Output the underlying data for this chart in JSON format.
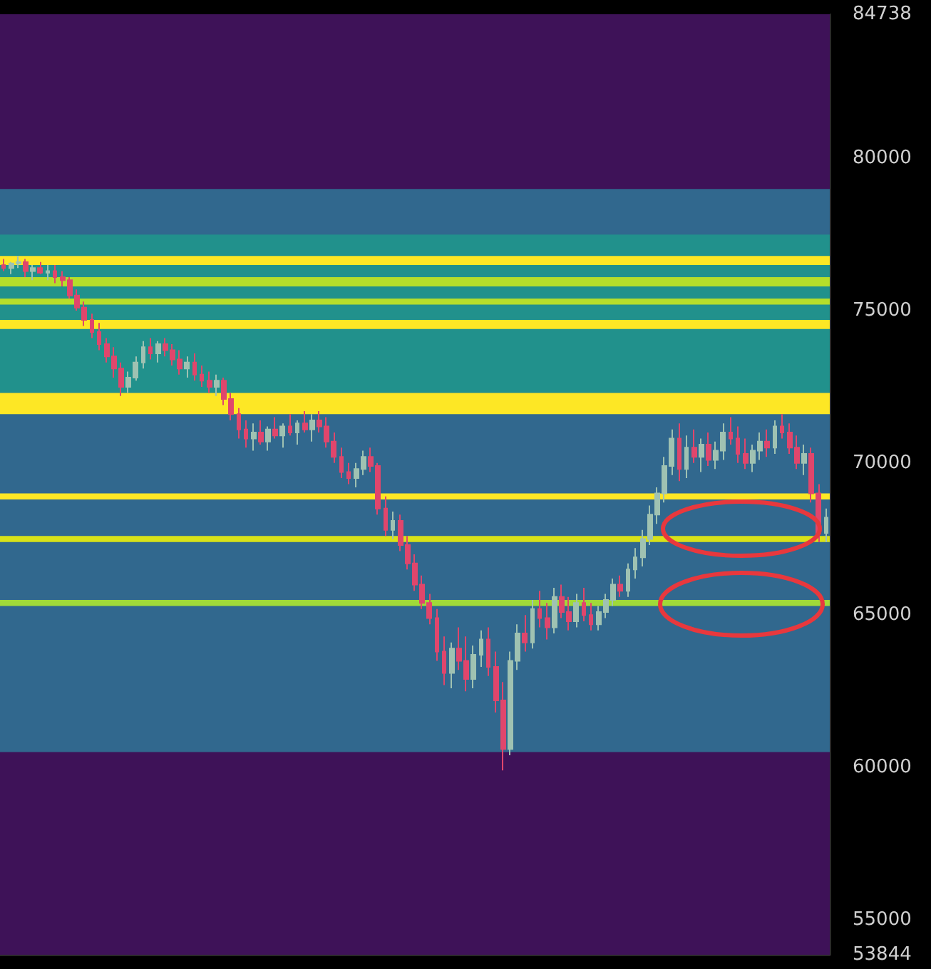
{
  "chart_data": {
    "type": "candlestick",
    "categories": [
      null,
      null,
      null,
      null,
      null,
      null,
      null,
      null,
      null,
      null,
      null,
      null,
      null,
      null,
      null,
      null,
      null,
      null,
      null,
      null,
      null,
      null,
      null,
      null,
      null,
      null,
      null,
      null,
      null,
      null,
      null,
      null,
      null,
      null,
      null,
      null,
      null,
      null,
      null,
      null,
      null,
      null,
      null,
      null,
      null,
      null,
      null,
      null,
      null,
      null,
      null,
      null,
      null,
      null,
      null,
      null,
      null,
      null,
      null,
      null,
      null,
      null,
      null,
      null,
      null,
      null,
      null,
      null,
      null,
      null,
      null,
      null,
      null,
      null,
      null,
      null,
      null,
      null,
      null,
      null,
      null,
      null,
      null,
      null,
      null,
      null,
      null,
      null,
      null,
      null,
      null,
      null,
      null,
      null,
      null,
      null,
      null,
      null,
      null,
      null,
      null,
      null,
      null,
      null,
      null,
      null,
      null,
      null,
      null,
      null,
      null,
      null,
      null
    ],
    "ohlc": [
      [
        76500,
        76700,
        76300,
        76400
      ],
      [
        76400,
        76600,
        76200,
        76550
      ],
      [
        76550,
        76800,
        76400,
        76600
      ],
      [
        76600,
        76700,
        76100,
        76300
      ],
      [
        76300,
        76500,
        76000,
        76400
      ],
      [
        76400,
        76600,
        76200,
        76250
      ],
      [
        76250,
        76500,
        76000,
        76300
      ],
      [
        76300,
        76500,
        75900,
        76100
      ],
      [
        76100,
        76300,
        75800,
        76000
      ],
      [
        76000,
        76100,
        75400,
        75500
      ],
      [
        75500,
        75700,
        75000,
        75100
      ],
      [
        75100,
        75300,
        74500,
        74700
      ],
      [
        74700,
        74900,
        74100,
        74300
      ],
      [
        74300,
        74600,
        73700,
        73900
      ],
      [
        73900,
        74100,
        73300,
        73500
      ],
      [
        73500,
        73800,
        72800,
        73100
      ],
      [
        73100,
        73300,
        72200,
        72500
      ],
      [
        72500,
        73000,
        72300,
        72800
      ],
      [
        72800,
        73500,
        72700,
        73300
      ],
      [
        73300,
        74000,
        73100,
        73800
      ],
      [
        73800,
        74100,
        73400,
        73600
      ],
      [
        73600,
        74000,
        73300,
        73900
      ],
      [
        73900,
        74100,
        73500,
        73700
      ],
      [
        73700,
        73900,
        73200,
        73400
      ],
      [
        73400,
        73700,
        72900,
        73100
      ],
      [
        73100,
        73500,
        72800,
        73300
      ],
      [
        73300,
        73600,
        72700,
        72900
      ],
      [
        72900,
        73200,
        72500,
        72700
      ],
      [
        72700,
        73000,
        72300,
        72500
      ],
      [
        72500,
        72900,
        72200,
        72700
      ],
      [
        72700,
        72800,
        71900,
        72100
      ],
      [
        72100,
        72300,
        71400,
        71600
      ],
      [
        71600,
        71800,
        70800,
        71100
      ],
      [
        71100,
        71400,
        70500,
        70800
      ],
      [
        70800,
        71300,
        70400,
        71000
      ],
      [
        71000,
        71400,
        70600,
        70700
      ],
      [
        70700,
        71200,
        70400,
        71100
      ],
      [
        71100,
        71500,
        70800,
        70900
      ],
      [
        70900,
        71300,
        70500,
        71200
      ],
      [
        71200,
        71600,
        70900,
        71000
      ],
      [
        71000,
        71400,
        70600,
        71300
      ],
      [
        71300,
        71700,
        71000,
        71100
      ],
      [
        71100,
        71600,
        70700,
        71400
      ],
      [
        71400,
        71700,
        71000,
        71200
      ],
      [
        71200,
        71500,
        70500,
        70700
      ],
      [
        70700,
        71000,
        70000,
        70200
      ],
      [
        70200,
        70500,
        69500,
        69700
      ],
      [
        69700,
        70000,
        69300,
        69500
      ],
      [
        69500,
        70000,
        69200,
        69800
      ],
      [
        69800,
        70400,
        69600,
        70200
      ],
      [
        70200,
        70500,
        69700,
        69900
      ],
      [
        69900,
        70000,
        68300,
        68500
      ],
      [
        68500,
        68900,
        67600,
        67800
      ],
      [
        67800,
        68400,
        67500,
        68100
      ],
      [
        68100,
        68300,
        67100,
        67300
      ],
      [
        67300,
        67600,
        66500,
        66700
      ],
      [
        66700,
        67000,
        65800,
        66000
      ],
      [
        66000,
        66300,
        65200,
        65400
      ],
      [
        65400,
        65700,
        64700,
        64900
      ],
      [
        64900,
        65200,
        63500,
        63800
      ],
      [
        63800,
        64300,
        62700,
        63100
      ],
      [
        63100,
        64100,
        62600,
        63900
      ],
      [
        63900,
        64600,
        63200,
        63500
      ],
      [
        63500,
        64300,
        62500,
        62900
      ],
      [
        62900,
        64000,
        62600,
        63700
      ],
      [
        63700,
        64500,
        63300,
        64200
      ],
      [
        64200,
        64600,
        63000,
        63300
      ],
      [
        63300,
        63800,
        61800,
        62200
      ],
      [
        62200,
        62800,
        59900,
        60600
      ],
      [
        60600,
        63800,
        60400,
        63500
      ],
      [
        63500,
        64700,
        63200,
        64400
      ],
      [
        64400,
        65000,
        63800,
        64100
      ],
      [
        64100,
        65500,
        63900,
        65200
      ],
      [
        65200,
        65800,
        64600,
        64900
      ],
      [
        64900,
        65400,
        64200,
        64600
      ],
      [
        64600,
        65900,
        64400,
        65600
      ],
      [
        65600,
        66000,
        64900,
        65100
      ],
      [
        65100,
        65600,
        64500,
        64800
      ],
      [
        64800,
        65700,
        64600,
        65400
      ],
      [
        65400,
        65900,
        64800,
        65000
      ],
      [
        65000,
        65400,
        64500,
        64700
      ],
      [
        64700,
        65300,
        64500,
        65100
      ],
      [
        65100,
        65700,
        64900,
        65500
      ],
      [
        65500,
        66200,
        65300,
        66000
      ],
      [
        66000,
        66300,
        65600,
        65800
      ],
      [
        65800,
        66700,
        65600,
        66500
      ],
      [
        66500,
        67200,
        66200,
        66900
      ],
      [
        66900,
        67800,
        66600,
        67500
      ],
      [
        67500,
        68600,
        67300,
        68300
      ],
      [
        68300,
        69200,
        68000,
        69000
      ],
      [
        69000,
        70200,
        68700,
        69900
      ],
      [
        69900,
        71100,
        69600,
        70800
      ],
      [
        70800,
        71300,
        69400,
        69800
      ],
      [
        69800,
        70900,
        69500,
        70500
      ],
      [
        70500,
        71100,
        70000,
        70200
      ],
      [
        70200,
        70800,
        69700,
        70600
      ],
      [
        70600,
        71000,
        69900,
        70100
      ],
      [
        70100,
        70700,
        69800,
        70400
      ],
      [
        70400,
        71300,
        70100,
        71000
      ],
      [
        71000,
        71500,
        70600,
        70800
      ],
      [
        70800,
        71200,
        70000,
        70300
      ],
      [
        70300,
        70800,
        69800,
        70000
      ],
      [
        70000,
        70600,
        69700,
        70400
      ],
      [
        70400,
        71000,
        70100,
        70700
      ],
      [
        70700,
        71100,
        70200,
        70500
      ],
      [
        70500,
        71400,
        70300,
        71200
      ],
      [
        71200,
        71600,
        70800,
        71000
      ],
      [
        71000,
        71300,
        70300,
        70500
      ],
      [
        70500,
        70900,
        69800,
        70000
      ],
      [
        70000,
        70600,
        69600,
        70300
      ],
      [
        70300,
        70500,
        68700,
        69000
      ],
      [
        69000,
        69300,
        67400,
        67700
      ],
      [
        67700,
        68500,
        67400,
        68200
      ]
    ],
    "colors": [
      "#e0466c",
      "#9fc2b2",
      "#9fc2b2",
      "#e0466c",
      "#9fc2b2",
      "#e0466c",
      "#9fc2b2",
      "#e0466c",
      "#e0466c",
      "#e0466c",
      "#e0466c",
      "#e0466c",
      "#e0466c",
      "#e0466c",
      "#e0466c",
      "#e0466c",
      "#e0466c",
      "#9fc2b2",
      "#9fc2b2",
      "#9fc2b2",
      "#e0466c",
      "#9fc2b2",
      "#e0466c",
      "#e0466c",
      "#e0466c",
      "#9fc2b2",
      "#e0466c",
      "#e0466c",
      "#e0466c",
      "#9fc2b2",
      "#e0466c",
      "#e0466c",
      "#e0466c",
      "#e0466c",
      "#9fc2b2",
      "#e0466c",
      "#9fc2b2",
      "#e0466c",
      "#9fc2b2",
      "#e0466c",
      "#9fc2b2",
      "#e0466c",
      "#9fc2b2",
      "#e0466c",
      "#e0466c",
      "#e0466c",
      "#e0466c",
      "#e0466c",
      "#9fc2b2",
      "#9fc2b2",
      "#e0466c",
      "#e0466c",
      "#e0466c",
      "#9fc2b2",
      "#e0466c",
      "#e0466c",
      "#e0466c",
      "#e0466c",
      "#e0466c",
      "#e0466c",
      "#e0466c",
      "#9fc2b2",
      "#e0466c",
      "#e0466c",
      "#9fc2b2",
      "#9fc2b2",
      "#e0466c",
      "#e0466c",
      "#e0466c",
      "#9fc2b2",
      "#9fc2b2",
      "#e0466c",
      "#9fc2b2",
      "#e0466c",
      "#e0466c",
      "#9fc2b2",
      "#e0466c",
      "#e0466c",
      "#9fc2b2",
      "#e0466c",
      "#e0466c",
      "#9fc2b2",
      "#9fc2b2",
      "#9fc2b2",
      "#e0466c",
      "#9fc2b2",
      "#9fc2b2",
      "#9fc2b2",
      "#9fc2b2",
      "#9fc2b2",
      "#9fc2b2",
      "#9fc2b2",
      "#e0466c",
      "#9fc2b2",
      "#e0466c",
      "#9fc2b2",
      "#e0466c",
      "#9fc2b2",
      "#9fc2b2",
      "#e0466c",
      "#e0466c",
      "#e0466c",
      "#9fc2b2",
      "#9fc2b2",
      "#e0466c",
      "#9fc2b2",
      "#e0466c",
      "#e0466c",
      "#e0466c",
      "#9fc2b2",
      "#e0466c",
      "#e0466c",
      "#9fc2b2"
    ],
    "ylim": [
      53844,
      84738
    ],
    "yticks": [
      53844,
      55000,
      60000,
      65000,
      70000,
      75000,
      80000,
      84738
    ],
    "tick_labels": "y",
    "bands": [
      {
        "axis": "y",
        "from": 60500,
        "to": 79000,
        "color": "#31688e"
      },
      {
        "axis": "y",
        "from": 72300,
        "to": 77500,
        "color": "#21918c"
      },
      {
        "axis": "y",
        "from": 76500,
        "to": 76800,
        "color": "#fde725"
      },
      {
        "axis": "y",
        "from": 75800,
        "to": 76100,
        "color": "#b5de2b"
      },
      {
        "axis": "y",
        "from": 75200,
        "to": 75400,
        "color": "#b5de2b"
      },
      {
        "axis": "y",
        "from": 74400,
        "to": 74700,
        "color": "#fde725"
      },
      {
        "axis": "y",
        "from": 71600,
        "to": 72300,
        "color": "#fde725"
      },
      {
        "axis": "y",
        "from": 68800,
        "to": 69000,
        "color": "#fde725"
      },
      {
        "axis": "y",
        "from": 67400,
        "to": 67600,
        "color": "#d8e219"
      },
      {
        "axis": "y",
        "from": 65300,
        "to": 65500,
        "color": "#a0da39"
      }
    ]
  }
}
